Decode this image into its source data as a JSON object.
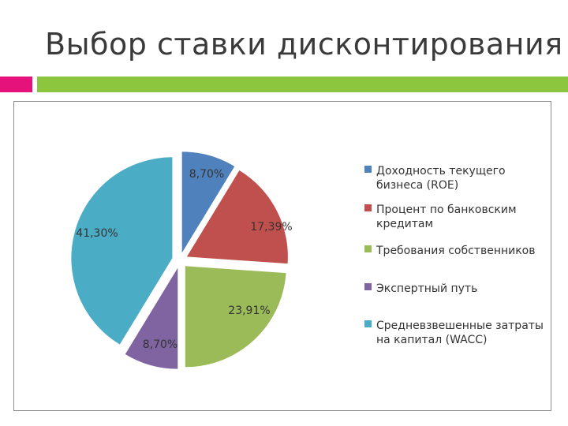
{
  "slide": {
    "title": "Выбор ставки дисконтирования"
  },
  "colors": {
    "accent_pink": "#e4127a",
    "accent_green": "#8cc63f"
  },
  "chart_data": {
    "type": "pie",
    "legend_position": "right",
    "slices": [
      {
        "name": "Доходность текущего бизнеса (ROE)",
        "legend_lines": [
          "Доходность текущего",
          "бизнеса (ROE)"
        ],
        "value": 8.7,
        "label": "8,70%",
        "color": "#4f81bd"
      },
      {
        "name": "Процент по банковским кредитам",
        "legend_lines": [
          "Процент по банковским",
          "кредитам"
        ],
        "value": 17.39,
        "label": "17,39%",
        "color": "#c0504d"
      },
      {
        "name": "Требования собственников",
        "legend_lines": [
          "Требования собственников"
        ],
        "value": 23.91,
        "label": "23,91%",
        "color": "#9bbb59"
      },
      {
        "name": "Экспертный путь",
        "legend_lines": [
          "Экспертный путь"
        ],
        "value": 8.7,
        "label": "8,70%",
        "color": "#8064a2"
      },
      {
        "name": "Средневзвешенные затраты на капитал (WACC)",
        "legend_lines": [
          "Средневзвешенные затраты",
          "на капитал (WACC)"
        ],
        "value": 41.3,
        "label": "41,30%",
        "color": "#4bacc6"
      }
    ]
  }
}
